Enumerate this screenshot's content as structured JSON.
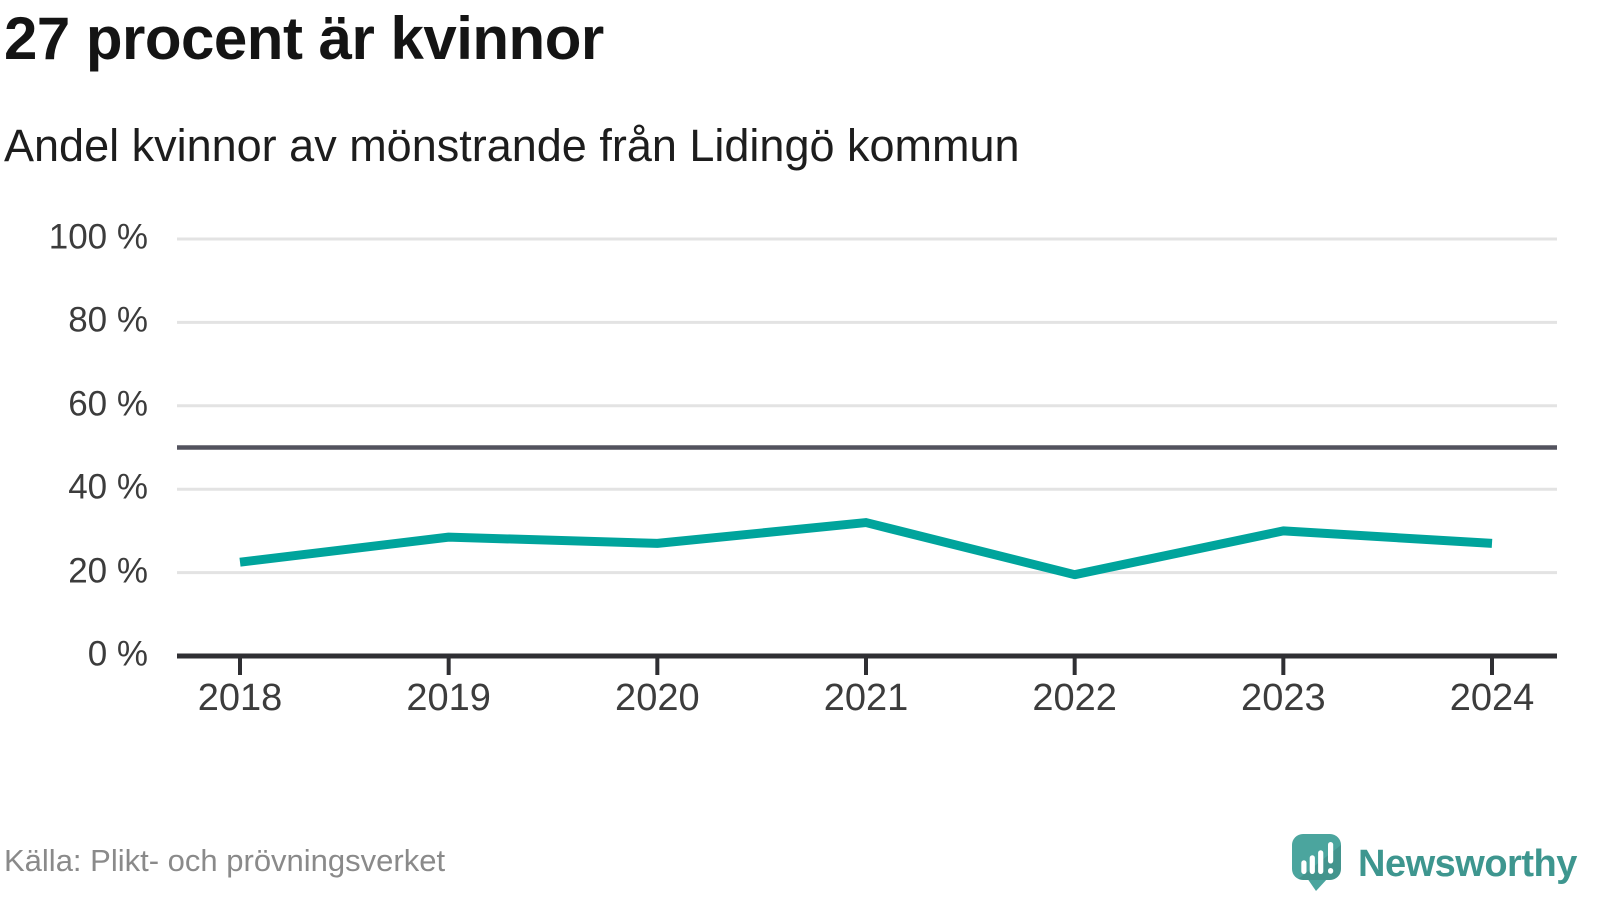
{
  "header": {
    "title": "27 procent är kvinnor",
    "subtitle": "Andel kvinnor av mönstrande från Lidingö kommun"
  },
  "footer": {
    "source": "Källa: Plikt- och prövningsverket",
    "brand": "Newsworthy"
  },
  "colors": {
    "data_line": "#00a49c",
    "reference_line": "#53535e",
    "gridline": "#e3e3e3",
    "axis": "#2f2f33",
    "tick_text": "#3c3c3c",
    "source_text": "#8a8a8a",
    "logo_bubble": "#4ba59e",
    "logo_text": "#3e968f"
  },
  "chart_data": {
    "type": "line",
    "title": "27 procent är kvinnor",
    "subtitle": "Andel kvinnor av mönstrande från Lidingö kommun",
    "categories": [
      "2018",
      "2019",
      "2020",
      "2021",
      "2022",
      "2023",
      "2024"
    ],
    "series": [
      {
        "name": "Andel kvinnor",
        "values": [
          22.5,
          28.5,
          27,
          32,
          19.5,
          30,
          27
        ]
      }
    ],
    "unit": "%",
    "ylim": [
      0,
      100
    ],
    "yticks": [
      {
        "value": 100,
        "label": "100 %"
      },
      {
        "value": 80,
        "label": "80 %"
      },
      {
        "value": 60,
        "label": "60 %"
      },
      {
        "value": 40,
        "label": "40 %"
      },
      {
        "value": 20,
        "label": "20 %"
      },
      {
        "value": 0,
        "label": "0 %"
      }
    ],
    "reference_line": {
      "value": 50,
      "label": ""
    },
    "xlabel": "",
    "ylabel": "",
    "legend": "none",
    "grid": "horizontal"
  }
}
